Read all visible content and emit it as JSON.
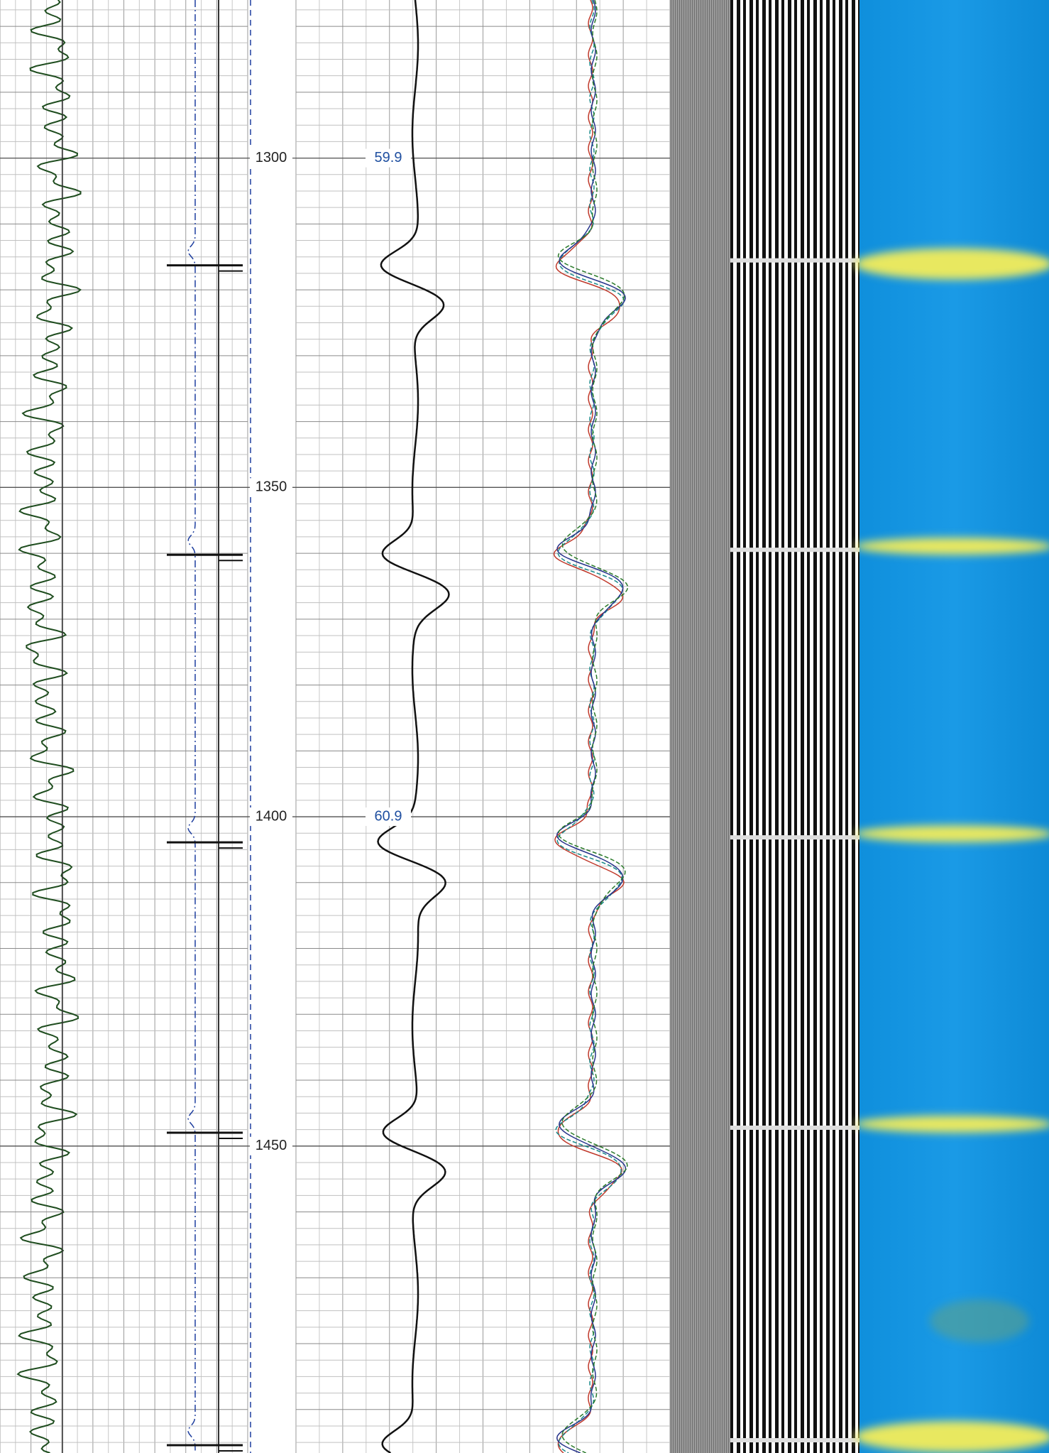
{
  "chart_data": {
    "type": "well-log",
    "ylim": [
      1276,
      1496.6
    ],
    "yticks": [
      1300,
      1350,
      1400,
      1450
    ],
    "annotations": [
      {
        "depth": 1300,
        "label": "59.9"
      },
      {
        "depth": 1400,
        "label": "60.9"
      }
    ],
    "grid": true
  }
}
